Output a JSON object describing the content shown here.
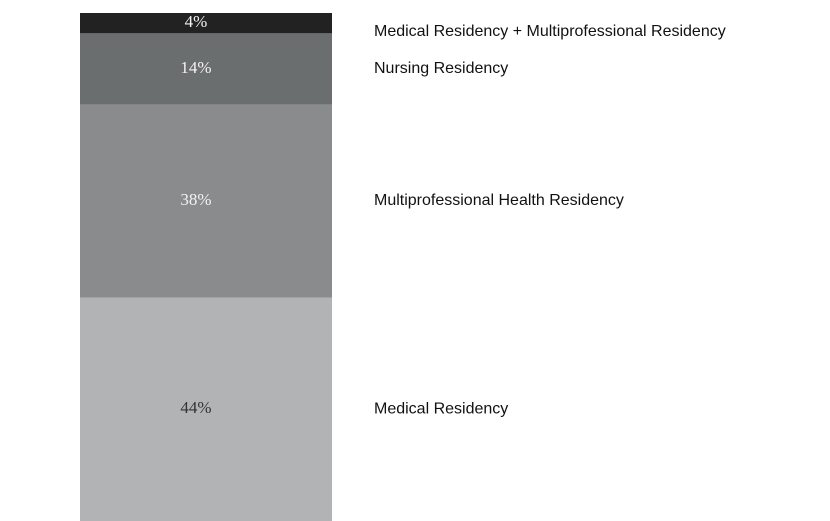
{
  "chart_data": {
    "type": "stacked_bar",
    "series": [
      {
        "name": "Medical Residency",
        "color": "#b1b3b5",
        "values": [
          44
        ],
        "value_labels": [
          "44%"
        ]
      },
      {
        "name": "Multiprofessional Health Residency",
        "color": "#898b8c",
        "values": [
          38
        ],
        "value_labels": [
          "38%"
        ]
      },
      {
        "name": "Nursing Residency",
        "color": "#6b6e6f",
        "values": [
          14
        ],
        "value_labels": [
          "14%"
        ]
      },
      {
        "name": "Medical Residency + Multiprofessional Residency",
        "color": "#222222",
        "values": [
          4
        ],
        "value_labels": [
          "4%"
        ]
      }
    ]
  }
}
